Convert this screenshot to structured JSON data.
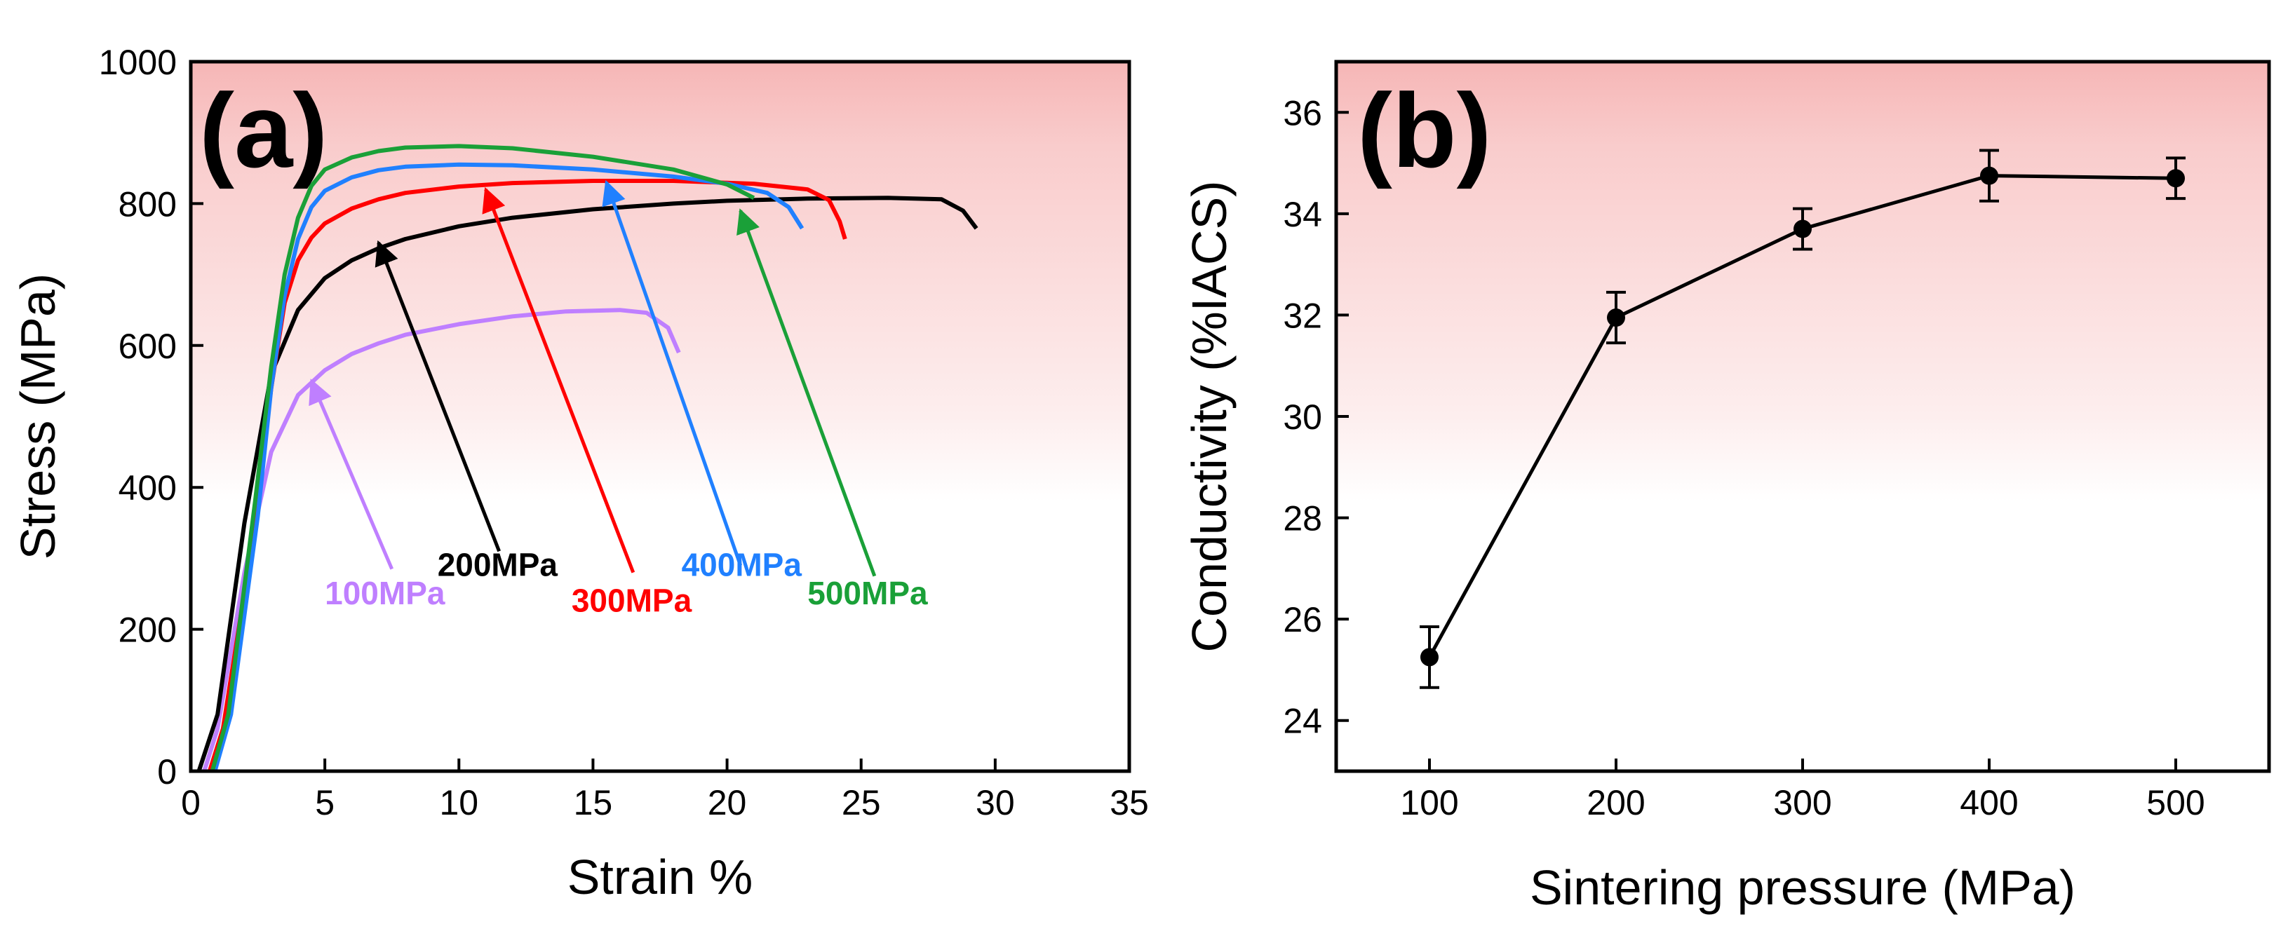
{
  "chart_data": [
    {
      "panel_label": "(a)",
      "type": "line",
      "xlabel": "Strain %",
      "ylabel": "Stress (MPa)",
      "xlim": [
        0,
        35
      ],
      "ylim": [
        0,
        1000
      ],
      "xticks": [
        0,
        5,
        10,
        15,
        20,
        25,
        30,
        35
      ],
      "yticks": [
        0,
        200,
        400,
        600,
        800,
        1000
      ],
      "background": "pink gradient fading to white",
      "series": [
        {
          "name": "100MPa",
          "color": "#bf7fff",
          "points": [
            [
              0.5,
              0
            ],
            [
              1,
              60
            ],
            [
              2,
              280
            ],
            [
              3,
              450
            ],
            [
              4,
              530
            ],
            [
              5,
              565
            ],
            [
              6,
              588
            ],
            [
              7,
              603
            ],
            [
              8,
              615
            ],
            [
              10,
              630
            ],
            [
              12,
              641
            ],
            [
              14,
              648
            ],
            [
              16,
              650
            ],
            [
              17,
              646
            ],
            [
              17.8,
              625
            ],
            [
              18.2,
              590
            ]
          ],
          "arrow_tip": [
            4.5,
            550
          ],
          "arrow_tail": [
            7.5,
            285
          ],
          "label_pos": [
            5,
            235
          ]
        },
        {
          "name": "200MPa",
          "color": "#000000",
          "points": [
            [
              0.3,
              0
            ],
            [
              1,
              80
            ],
            [
              2,
              350
            ],
            [
              3,
              560
            ],
            [
              4,
              650
            ],
            [
              5,
              695
            ],
            [
              6,
              720
            ],
            [
              7,
              737
            ],
            [
              8,
              750
            ],
            [
              10,
              768
            ],
            [
              12,
              780
            ],
            [
              15,
              792
            ],
            [
              18,
              800
            ],
            [
              20,
              804
            ],
            [
              23,
              807
            ],
            [
              26,
              808
            ],
            [
              28,
              806
            ],
            [
              28.8,
              790
            ],
            [
              29.3,
              765
            ]
          ],
          "arrow_tip": [
            7,
            745
          ],
          "arrow_tail": [
            11.5,
            310
          ],
          "label_pos": [
            9.2,
            275
          ]
        },
        {
          "name": "300MPa",
          "color": "#ff0000",
          "points": [
            [
              0.7,
              0
            ],
            [
              1.2,
              60
            ],
            [
              2.2,
              300
            ],
            [
              3,
              540
            ],
            [
              3.5,
              660
            ],
            [
              4,
              720
            ],
            [
              4.5,
              752
            ],
            [
              5,
              772
            ],
            [
              6,
              793
            ],
            [
              7,
              806
            ],
            [
              8,
              815
            ],
            [
              10,
              824
            ],
            [
              12,
              829
            ],
            [
              15,
              832
            ],
            [
              18,
              832
            ],
            [
              21,
              828
            ],
            [
              23,
              820
            ],
            [
              23.8,
              805
            ],
            [
              24.2,
              775
            ],
            [
              24.4,
              750
            ]
          ],
          "arrow_tip": [
            11,
            820
          ],
          "arrow_tail": [
            16.5,
            280
          ],
          "label_pos": [
            14.2,
            225
          ]
        },
        {
          "name": "400MPa",
          "color": "#2080ff",
          "points": [
            [
              0.9,
              0
            ],
            [
              1.5,
              80
            ],
            [
              2.5,
              360
            ],
            [
              3,
              540
            ],
            [
              3.5,
              670
            ],
            [
              4,
              750
            ],
            [
              4.5,
              795
            ],
            [
              5,
              818
            ],
            [
              6,
              837
            ],
            [
              7,
              847
            ],
            [
              8,
              852
            ],
            [
              10,
              855
            ],
            [
              12,
              854
            ],
            [
              15,
              848
            ],
            [
              18,
              838
            ],
            [
              20,
              828
            ],
            [
              21.5,
              815
            ],
            [
              22.3,
              795
            ],
            [
              22.8,
              765
            ]
          ],
          "arrow_tip": [
            15.5,
            830
          ],
          "arrow_tail": [
            20.5,
            290
          ],
          "label_pos": [
            18.3,
            275
          ]
        },
        {
          "name": "500MPa",
          "color": "#1aa038",
          "points": [
            [
              0.8,
              0
            ],
            [
              1.4,
              80
            ],
            [
              2.4,
              380
            ],
            [
              3,
              570
            ],
            [
              3.5,
              700
            ],
            [
              4,
              780
            ],
            [
              4.5,
              825
            ],
            [
              5,
              848
            ],
            [
              6,
              865
            ],
            [
              7,
              874
            ],
            [
              8,
              879
            ],
            [
              10,
              881
            ],
            [
              12,
              878
            ],
            [
              15,
              866
            ],
            [
              18,
              848
            ],
            [
              20,
              827
            ],
            [
              21,
              808
            ]
          ],
          "arrow_tip": [
            20.5,
            790
          ],
          "arrow_tail": [
            25.5,
            275
          ],
          "label_pos": [
            23,
            235
          ]
        }
      ]
    },
    {
      "panel_label": "(b)",
      "type": "line",
      "xlabel": "Sintering pressure (MPa)",
      "ylabel": "Conductivity (%IACS)",
      "xlim": [
        50,
        550
      ],
      "ylim": [
        23,
        37
      ],
      "xticks": [
        100,
        200,
        300,
        400,
        500
      ],
      "yticks": [
        24,
        26,
        28,
        30,
        32,
        34,
        36
      ],
      "background": "pink gradient fading to white",
      "series": [
        {
          "color": "#000000",
          "x": [
            100,
            200,
            300,
            400,
            500
          ],
          "y": [
            25.25,
            31.95,
            33.7,
            34.75,
            34.7
          ],
          "error": [
            0.6,
            0.5,
            0.4,
            0.5,
            0.4
          ]
        }
      ]
    }
  ]
}
